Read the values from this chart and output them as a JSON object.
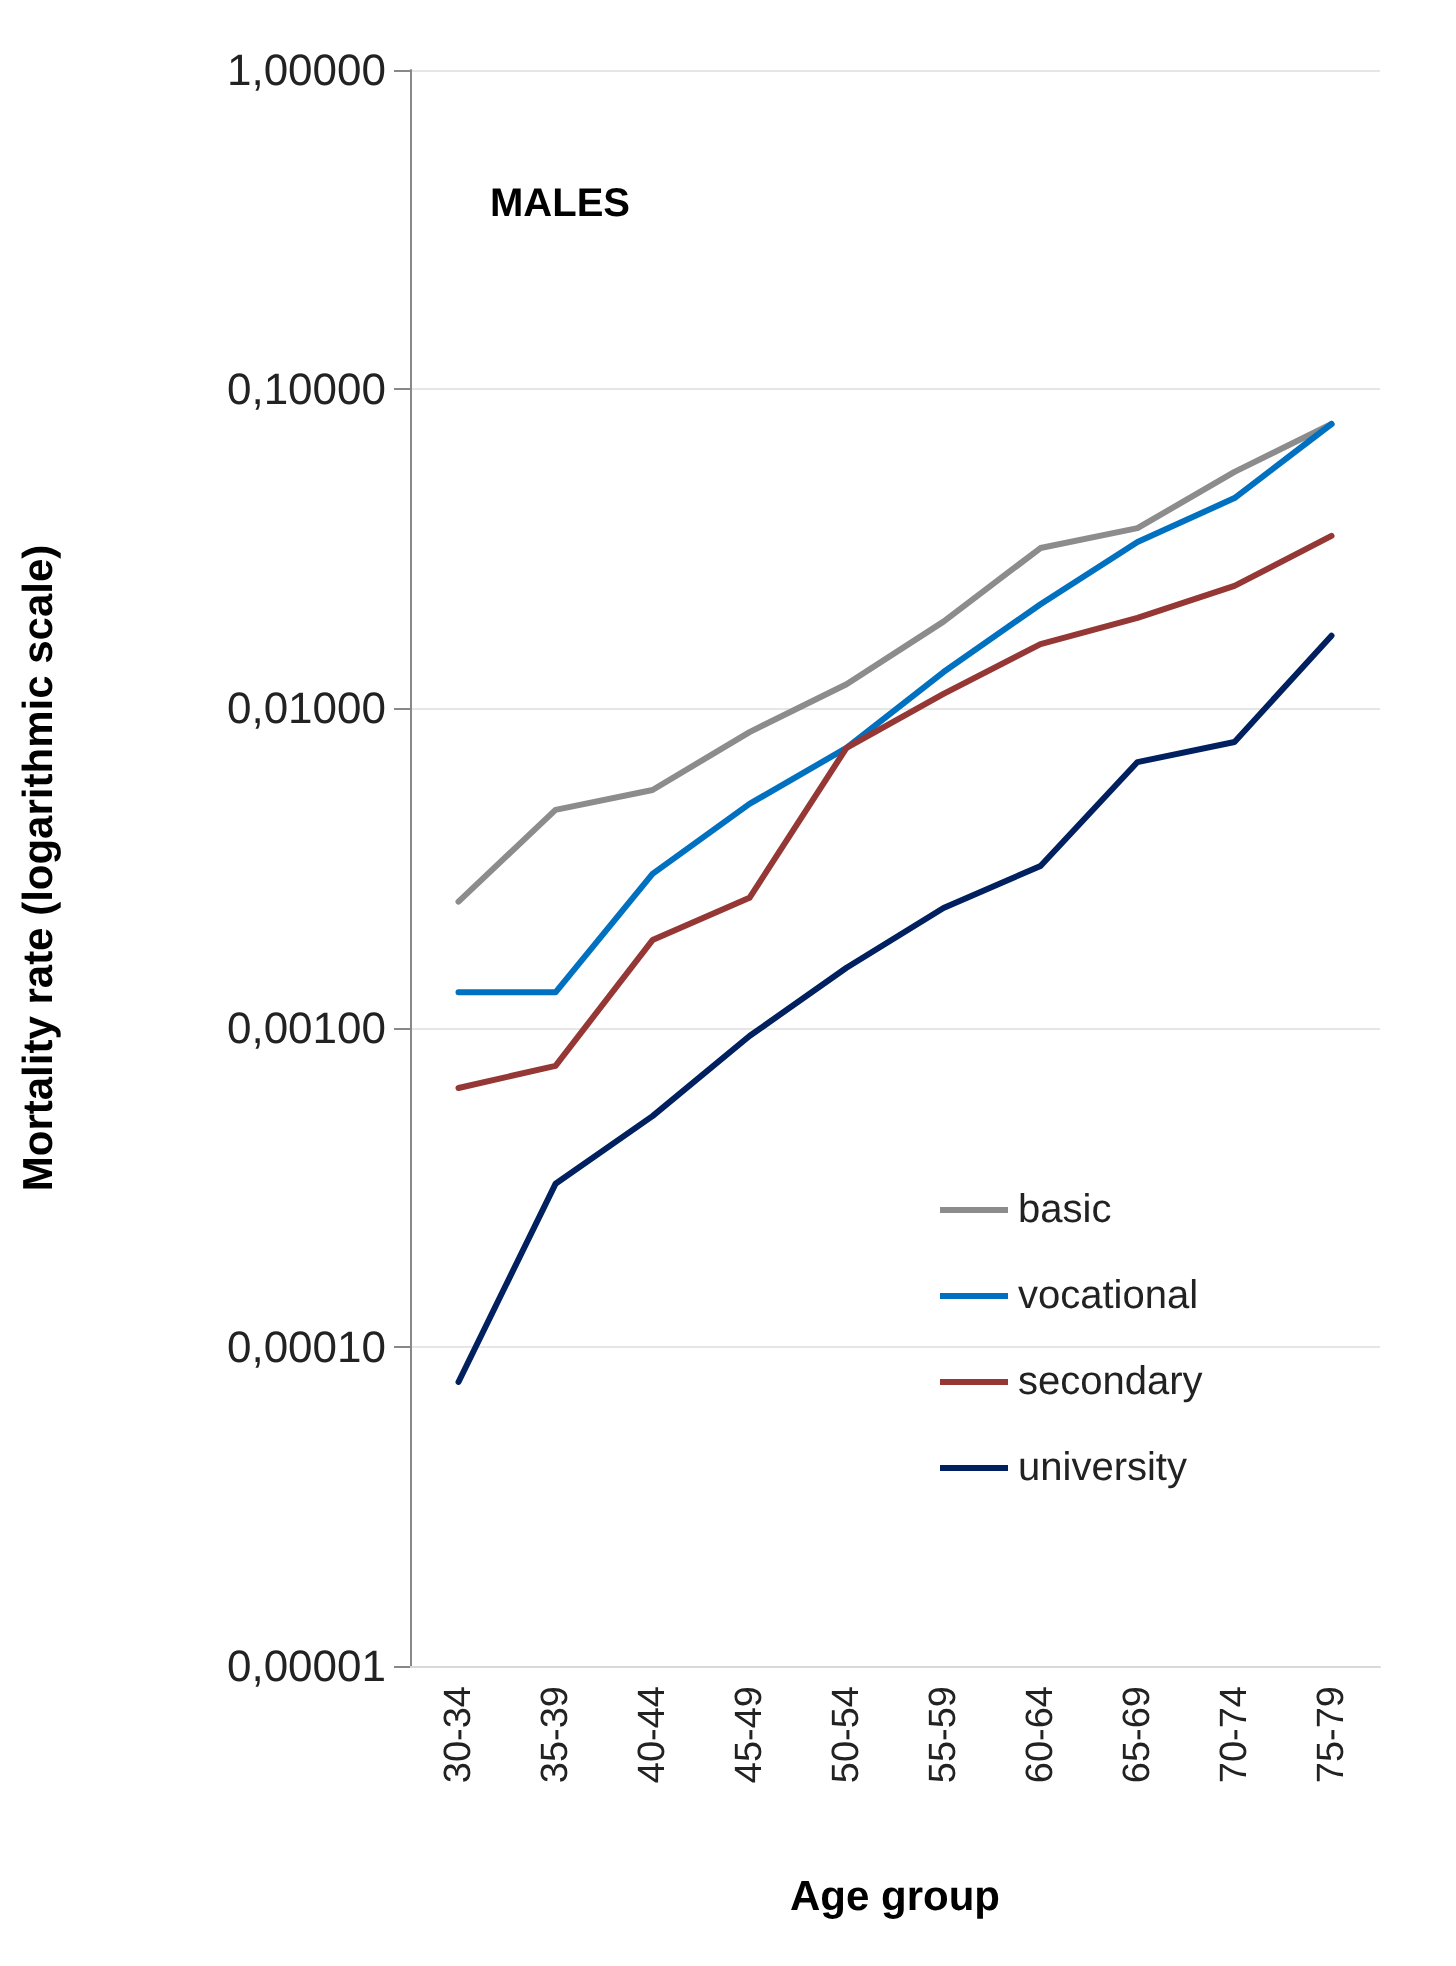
{
  "chart_data": {
    "type": "line",
    "xlabel": "Age group",
    "ylabel": "Mortality rate (logarithmic scale)",
    "annotations": [
      "MALES"
    ],
    "categories": [
      "30-34",
      "35-39",
      "40-44",
      "45-49",
      "50-54",
      "55-59",
      "60-64",
      "65-69",
      "70-74",
      "75-79"
    ],
    "series": [
      {
        "name": "basic",
        "color": "#8c8c8c",
        "values": [
          0.00248,
          0.00481,
          0.00555,
          0.00843,
          0.0119,
          0.0187,
          0.0318,
          0.0367,
          0.0551,
          0.0778
        ]
      },
      {
        "name": "vocational",
        "color": "#0070c0",
        "values": [
          0.00129,
          0.00129,
          0.00303,
          0.00502,
          0.00752,
          0.013,
          0.0212,
          0.0332,
          0.0456,
          0.0778
        ]
      },
      {
        "name": "secondary",
        "color": "#953735",
        "values": [
          0.000647,
          0.000759,
          0.00188,
          0.00255,
          0.00752,
          0.0111,
          0.0159,
          0.0192,
          0.0242,
          0.0347
        ]
      },
      {
        "name": "university",
        "color": "#002060",
        "values": [
          7.76e-05,
          0.000324,
          0.000528,
          0.000941,
          0.00154,
          0.00237,
          0.00321,
          0.00679,
          0.00785,
          0.0169
        ]
      }
    ],
    "log": "y",
    "ylim": [
      1e-05,
      1
    ],
    "yticks": [
      {
        "value": 1e-05,
        "label": "0,00001"
      },
      {
        "value": 0.0001,
        "label": "0,00010"
      },
      {
        "value": 0.001,
        "label": "0,00100"
      },
      {
        "value": 0.01,
        "label": "0,01000"
      },
      {
        "value": 0.1,
        "label": "0,10000"
      },
      {
        "value": 1,
        "label": "1,00000"
      }
    ],
    "grid": "y",
    "legend": "bottom right",
    "marker": "none",
    "line_style": "solid"
  }
}
